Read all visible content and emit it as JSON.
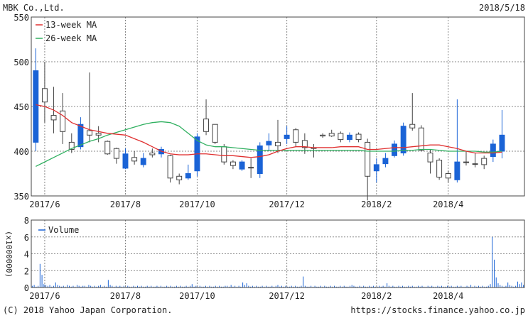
{
  "header": {
    "company": "MBK Co.,Ltd.",
    "date": "2018/5/18"
  },
  "footer": {
    "copyright": "(C) 2018 Yahoo Japan Corporation.",
    "url": "https://stocks.finance.yahoo.co.jp"
  },
  "colors": {
    "up_candle": "#1a63d6",
    "down_candle_fill": "#ffffff",
    "down_candle_stroke": "#444444",
    "ma13": "#e03030",
    "ma26": "#30b060",
    "volume": "#1a63d6",
    "grid": "#888888",
    "frame": "#444444"
  },
  "chart_data": [
    {
      "type": "candlestick",
      "name": "price",
      "ylim": [
        350,
        550
      ],
      "yticks": [
        350,
        400,
        450,
        500,
        550
      ],
      "xticks": [
        "2017/6",
        "2017/8",
        "2017/10",
        "2017/12",
        "2018/2",
        "2018/4"
      ],
      "xtick_week": [
        1,
        10,
        18,
        28,
        38,
        46
      ],
      "grid": true,
      "legend": {
        "placement": "top-left",
        "entries": [
          "13-week MA",
          "26-week MA"
        ]
      },
      "weeks": 55,
      "candles": [
        {
          "o": 410,
          "h": 515,
          "l": 400,
          "c": 490,
          "up": true
        },
        {
          "o": 470,
          "h": 500,
          "l": 432,
          "c": 455,
          "up": false
        },
        {
          "o": 440,
          "h": 472,
          "l": 420,
          "c": 435,
          "up": false
        },
        {
          "o": 445,
          "h": 465,
          "l": 408,
          "c": 422,
          "up": false
        },
        {
          "o": 410,
          "h": 420,
          "l": 398,
          "c": 402,
          "up": false
        },
        {
          "o": 405,
          "h": 438,
          "l": 402,
          "c": 430,
          "up": true
        },
        {
          "o": 423,
          "h": 488,
          "l": 410,
          "c": 418,
          "up": false
        },
        {
          "o": 420,
          "h": 428,
          "l": 410,
          "c": 418,
          "up": false
        },
        {
          "o": 411,
          "h": 412,
          "l": 396,
          "c": 397,
          "up": false
        },
        {
          "o": 403,
          "h": 404,
          "l": 386,
          "c": 392,
          "up": false
        },
        {
          "o": 381,
          "h": 403,
          "l": 380,
          "c": 397,
          "up": true
        },
        {
          "o": 393,
          "h": 400,
          "l": 385,
          "c": 389,
          "up": false
        },
        {
          "o": 385,
          "h": 398,
          "l": 382,
          "c": 392,
          "up": true
        },
        {
          "o": 398,
          "h": 403,
          "l": 393,
          "c": 396,
          "up": false
        },
        {
          "o": 397,
          "h": 405,
          "l": 393,
          "c": 402,
          "up": true
        },
        {
          "o": 395,
          "h": 396,
          "l": 365,
          "c": 370,
          "up": false
        },
        {
          "o": 372,
          "h": 375,
          "l": 363,
          "c": 368,
          "up": false
        },
        {
          "o": 370,
          "h": 385,
          "l": 368,
          "c": 375,
          "up": true
        },
        {
          "o": 378,
          "h": 420,
          "l": 372,
          "c": 416,
          "up": true
        },
        {
          "o": 436,
          "h": 458,
          "l": 418,
          "c": 422,
          "up": false
        },
        {
          "o": 430,
          "h": 430,
          "l": 408,
          "c": 410,
          "up": false
        },
        {
          "o": 405,
          "h": 408,
          "l": 385,
          "c": 388,
          "up": false
        },
        {
          "o": 388,
          "h": 390,
          "l": 380,
          "c": 384,
          "up": false
        },
        {
          "o": 380,
          "h": 390,
          "l": 378,
          "c": 388,
          "up": true
        },
        {
          "o": 382,
          "h": 392,
          "l": 370,
          "c": 382,
          "up": false
        },
        {
          "o": 375,
          "h": 410,
          "l": 370,
          "c": 406,
          "up": true
        },
        {
          "o": 407,
          "h": 420,
          "l": 400,
          "c": 411,
          "up": true
        },
        {
          "o": 410,
          "h": 435,
          "l": 398,
          "c": 406,
          "up": false
        },
        {
          "o": 414,
          "h": 428,
          "l": 408,
          "c": 418,
          "up": true
        },
        {
          "o": 424,
          "h": 426,
          "l": 405,
          "c": 410,
          "up": false
        },
        {
          "o": 412,
          "h": 420,
          "l": 397,
          "c": 404,
          "up": false
        },
        {
          "o": 404,
          "h": 408,
          "l": 393,
          "c": 403,
          "up": false
        },
        {
          "o": 418,
          "h": 420,
          "l": 415,
          "c": 417,
          "up": false
        },
        {
          "o": 417,
          "h": 424,
          "l": 416,
          "c": 420,
          "up": false
        },
        {
          "o": 420,
          "h": 422,
          "l": 410,
          "c": 413,
          "up": false
        },
        {
          "o": 413,
          "h": 421,
          "l": 410,
          "c": 418,
          "up": true
        },
        {
          "o": 419,
          "h": 421,
          "l": 410,
          "c": 413,
          "up": false
        },
        {
          "o": 410,
          "h": 414,
          "l": 345,
          "c": 372,
          "up": false
        },
        {
          "o": 378,
          "h": 392,
          "l": 365,
          "c": 385,
          "up": true
        },
        {
          "o": 386,
          "h": 398,
          "l": 382,
          "c": 392,
          "up": true
        },
        {
          "o": 395,
          "h": 412,
          "l": 393,
          "c": 408,
          "up": true
        },
        {
          "o": 398,
          "h": 432,
          "l": 395,
          "c": 428,
          "up": true
        },
        {
          "o": 430,
          "h": 465,
          "l": 423,
          "c": 426,
          "up": false
        },
        {
          "o": 426,
          "h": 429,
          "l": 400,
          "c": 401,
          "up": false
        },
        {
          "o": 398,
          "h": 402,
          "l": 375,
          "c": 388,
          "up": false
        },
        {
          "o": 390,
          "h": 392,
          "l": 368,
          "c": 371,
          "up": false
        },
        {
          "o": 375,
          "h": 378,
          "l": 365,
          "c": 370,
          "up": false
        },
        {
          "o": 368,
          "h": 458,
          "l": 365,
          "c": 388,
          "up": true
        },
        {
          "o": 388,
          "h": 400,
          "l": 384,
          "c": 388,
          "up": false
        },
        {
          "o": 386,
          "h": 398,
          "l": 382,
          "c": 386,
          "up": false
        },
        {
          "o": 385,
          "h": 395,
          "l": 380,
          "c": 392,
          "up": false
        },
        {
          "o": 394,
          "h": 413,
          "l": 388,
          "c": 408,
          "up": true
        },
        {
          "o": 400,
          "h": 446,
          "l": 392,
          "c": 418,
          "up": true
        }
      ],
      "ma13": [
        452,
        450,
        446,
        440,
        432,
        428,
        424,
        422,
        420,
        419,
        418,
        414,
        410,
        405,
        400,
        397,
        396,
        396,
        397,
        397,
        396,
        395,
        395,
        394,
        393,
        394,
        396,
        400,
        403,
        405,
        405,
        404,
        404,
        404,
        405,
        405,
        405,
        402,
        402,
        403,
        404,
        404,
        405,
        406,
        407,
        407,
        405,
        403,
        400,
        398,
        398,
        398,
        399
      ],
      "ma26": [
        383,
        388,
        393,
        398,
        403,
        407,
        411,
        414,
        418,
        421,
        424,
        427,
        430,
        432,
        433,
        432,
        428,
        420,
        412,
        407,
        405,
        405,
        404,
        403,
        402,
        401,
        401,
        401,
        401,
        401,
        401,
        401,
        401,
        401,
        401,
        401,
        401,
        400,
        400,
        400,
        400,
        401,
        401,
        402,
        402,
        401,
        400,
        400,
        400,
        400,
        399,
        399,
        400
      ]
    },
    {
      "type": "bar",
      "name": "volume",
      "ylabel": "(x1000000)",
      "ylim": [
        0,
        8
      ],
      "yticks": [
        0,
        2,
        4,
        6,
        8
      ],
      "legend": {
        "placement": "top-left",
        "entries": [
          "Volume"
        ]
      },
      "xticks": [
        "2017/6",
        "2017/8",
        "2017/10",
        "2017/12",
        "2018/2",
        "2018/4"
      ],
      "days": 245,
      "values": [
        0.2,
        0.3,
        0.1,
        0.2,
        2.8,
        1.5,
        0.4,
        0.3,
        0.2,
        0.3,
        0.1,
        0.2,
        0.6,
        0.3,
        0.2,
        0.1,
        0.2,
        0.1,
        0.3,
        0.2,
        0.1,
        0.2,
        0.1,
        0.3,
        0.2,
        0.1,
        0.2,
        0.2,
        0.1,
        0.3,
        0.2,
        0.1,
        0.2,
        0.1,
        0.2,
        0.3,
        0.1,
        0.2,
        0.1,
        0.9,
        0.3,
        0.2,
        0.1,
        0.2,
        0.1,
        0.2,
        0.1,
        0.2,
        0.1,
        0.2,
        0.1,
        0.1,
        0.2,
        0.1,
        0.2,
        0.1,
        0.2,
        0.1,
        0.1,
        0.2,
        0.1,
        0.2,
        0.1,
        0.1,
        0.2,
        0.1,
        0.2,
        0.1,
        0.1,
        0.2,
        0.1,
        0.2,
        0.1,
        0.1,
        0.2,
        0.1,
        0.2,
        0.1,
        0.1,
        0.2,
        0.1,
        0.2,
        0.4,
        0.1,
        0.2,
        0.1,
        0.2,
        0.1,
        0.1,
        0.2,
        0.1,
        0.2,
        0.1,
        0.1,
        0.2,
        0.1,
        0.2,
        0.1,
        0.1,
        0.2,
        0.2,
        0.1,
        0.3,
        0.1,
        0.2,
        0.1,
        0.2,
        0.1,
        0.6,
        0.3,
        0.5,
        0.2,
        0.1,
        0.2,
        0.1,
        0.2,
        0.1,
        0.1,
        0.2,
        0.1,
        0.2,
        0.1,
        0.1,
        0.2,
        0.1,
        0.2,
        0.3,
        0.1,
        0.2,
        0.1,
        0.2,
        0.1,
        0.1,
        0.2,
        0.1,
        0.2,
        0.1,
        0.1,
        0.2,
        1.3,
        0.2,
        0.1,
        0.1,
        0.2,
        0.1,
        0.2,
        0.1,
        0.1,
        0.2,
        0.1,
        0.2,
        0.1,
        0.1,
        0.2,
        0.1,
        0.2,
        0.1,
        0.1,
        0.2,
        0.1,
        0.2,
        0.1,
        0.1,
        0.2,
        0.3,
        0.2,
        0.1,
        0.1,
        0.2,
        0.1,
        0.2,
        0.1,
        0.1,
        0.2,
        0.1,
        0.2,
        0.1,
        0.1,
        0.2,
        0.1,
        0.2,
        0.1,
        0.5,
        0.2,
        0.1,
        0.2,
        0.1,
        0.1,
        0.2,
        0.1,
        0.2,
        0.1,
        0.1,
        0.2,
        0.1,
        0.2,
        0.1,
        0.1,
        0.2,
        0.1,
        0.2,
        0.1,
        0.1,
        0.2,
        0.1,
        0.2,
        0.1,
        0.1,
        0.2,
        0.1,
        0.2,
        0.1,
        0.1,
        0.2,
        0.1,
        0.2,
        0.1,
        0.1,
        0.2,
        0.1,
        0.2,
        0.1,
        0.1,
        0.2,
        0.1,
        0.3,
        0.1,
        0.2,
        0.1,
        0.2,
        0.1,
        0.2,
        0.1,
        0.1,
        0.2,
        0.4,
        6.0,
        3.3,
        1.2,
        0.5,
        0.3,
        0.2,
        0.1,
        0.2,
        0.6,
        0.3,
        0.2,
        0.1,
        0.2,
        0.7,
        0.4,
        0.6,
        0.3
      ]
    }
  ]
}
